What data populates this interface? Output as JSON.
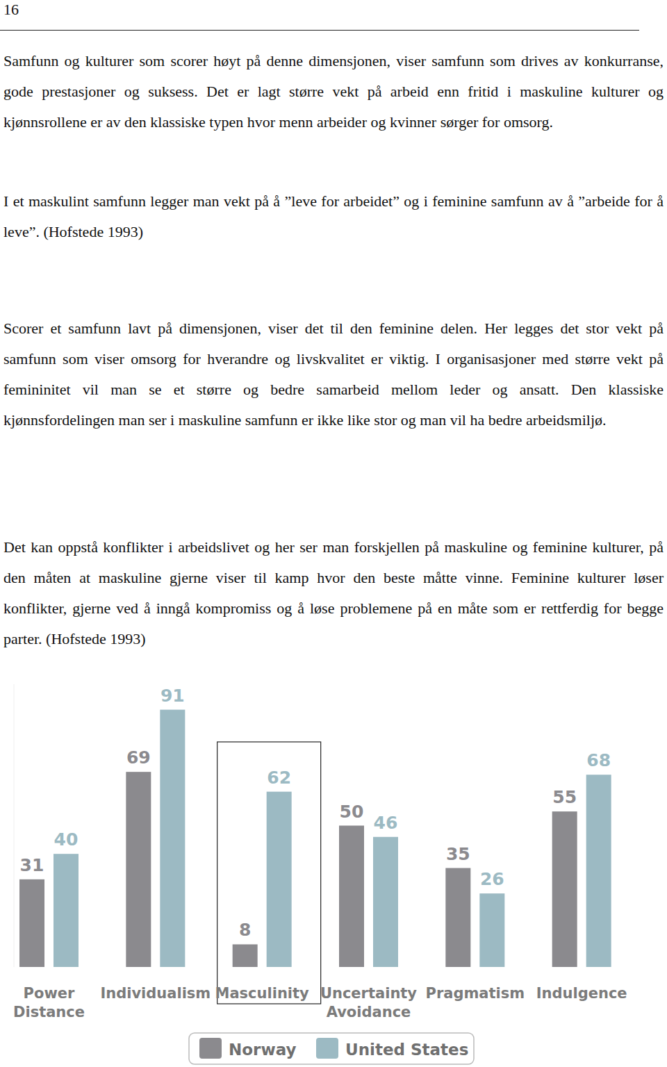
{
  "page_number": "16",
  "paragraphs": [
    "Samfunn og kulturer som scorer høyt på denne dimensjonen, viser samfunn som drives av konkurranse, gode prestasjoner og suksess. Det er lagt større vekt på arbeid enn fritid i maskuline kulturer og kjønnsrollene er av den klassiske typen hvor menn arbeider og kvinner sørger for omsorg.",
    "I et maskulint samfunn legger man vekt på å ”leve for arbeidet” og i feminine samfunn av å ”arbeide for å leve”. (Hofstede 1993)",
    "Scorer et samfunn lavt på dimensjonen, viser det til den feminine delen. Her legges det stor vekt på samfunn som viser omsorg for hverandre og livskvalitet er viktig. I organisasjoner med større vekt på femininitet vil man se et større og bedre samarbeid mellom leder og ansatt. Den klassiske kjønnsfordelingen man ser i maskuline samfunn er ikke like stor og man vil ha bedre arbeidsmiljø.",
    "Det kan oppstå konflikter i arbeidslivet og her ser man forskjellen på maskuline og feminine kulturer, på den måten at maskuline gjerne viser til kamp hvor den beste måtte vinne. Feminine kulturer løser konflikter, gjerne ved å inngå kompromiss og å løse problemene på en måte som er rettferdig for begge parter. (Hofstede 1993)"
  ],
  "chart_data": {
    "type": "bar",
    "categories": [
      "Power Distance",
      "Individualism",
      "Masculinity",
      "Uncertainty Avoidance",
      "Pragmatism",
      "Indulgence"
    ],
    "series": [
      {
        "name": "Norway",
        "color": "#8b8a8e",
        "values": [
          31,
          69,
          8,
          50,
          35,
          55
        ]
      },
      {
        "name": "United States",
        "color": "#9cbac3",
        "values": [
          40,
          91,
          62,
          46,
          26,
          68
        ]
      }
    ],
    "ylim": [
      0,
      100
    ],
    "tick_labels": false,
    "data_labels": true,
    "legend": "bottom"
  }
}
